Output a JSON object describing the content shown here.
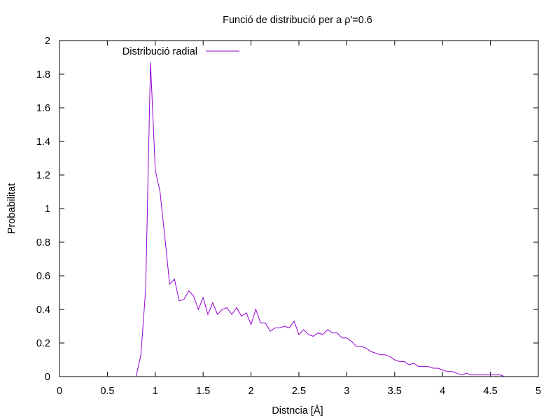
{
  "chart_data": {
    "type": "line",
    "title": "Funció de distribució per a ρ'=0.6",
    "xlabel": "Distncia [Å]",
    "ylabel": "Probabilitat",
    "xlim": [
      0,
      5
    ],
    "ylim": [
      0,
      2
    ],
    "x_ticks": [
      "0",
      "0.5",
      "1",
      "1.5",
      "2",
      "2.5",
      "3",
      "3.5",
      "4",
      "4.5",
      "5"
    ],
    "y_ticks": [
      "0",
      "0.2",
      "0.4",
      "0.6",
      "0.8",
      "1",
      "1.2",
      "1.4",
      "1.6",
      "1.8",
      "2"
    ],
    "grid": false,
    "legend_position": "top-left",
    "series": [
      {
        "name": "Distribució radial",
        "color": "#9400d3",
        "x": [
          0.8,
          0.85,
          0.9,
          0.95,
          1.0,
          1.05,
          1.1,
          1.15,
          1.2,
          1.25,
          1.3,
          1.35,
          1.4,
          1.45,
          1.5,
          1.55,
          1.6,
          1.65,
          1.7,
          1.75,
          1.8,
          1.85,
          1.9,
          1.95,
          2.0,
          2.05,
          2.1,
          2.15,
          2.2,
          2.25,
          2.3,
          2.35,
          2.4,
          2.45,
          2.5,
          2.55,
          2.6,
          2.65,
          2.7,
          2.75,
          2.8,
          2.85,
          2.9,
          2.95,
          3.0,
          3.05,
          3.1,
          3.15,
          3.2,
          3.25,
          3.3,
          3.35,
          3.4,
          3.45,
          3.5,
          3.55,
          3.6,
          3.65,
          3.7,
          3.75,
          3.8,
          3.85,
          3.9,
          3.95,
          4.0,
          4.05,
          4.1,
          4.15,
          4.2,
          4.25,
          4.3,
          4.35,
          4.4,
          4.45,
          4.5,
          4.55,
          4.6,
          4.65
        ],
        "y": [
          0.0,
          0.13,
          0.52,
          1.87,
          1.23,
          1.1,
          0.83,
          0.55,
          0.58,
          0.45,
          0.46,
          0.51,
          0.48,
          0.4,
          0.47,
          0.37,
          0.44,
          0.37,
          0.4,
          0.41,
          0.37,
          0.41,
          0.36,
          0.38,
          0.31,
          0.4,
          0.32,
          0.32,
          0.27,
          0.29,
          0.29,
          0.3,
          0.29,
          0.33,
          0.25,
          0.28,
          0.25,
          0.24,
          0.26,
          0.25,
          0.28,
          0.26,
          0.26,
          0.23,
          0.23,
          0.21,
          0.18,
          0.18,
          0.17,
          0.15,
          0.14,
          0.13,
          0.13,
          0.12,
          0.1,
          0.09,
          0.09,
          0.07,
          0.08,
          0.06,
          0.06,
          0.06,
          0.05,
          0.05,
          0.04,
          0.03,
          0.03,
          0.02,
          0.01,
          0.02,
          0.01,
          0.01,
          0.01,
          0.01,
          0.01,
          0.01,
          0.01,
          0.0
        ]
      }
    ]
  }
}
